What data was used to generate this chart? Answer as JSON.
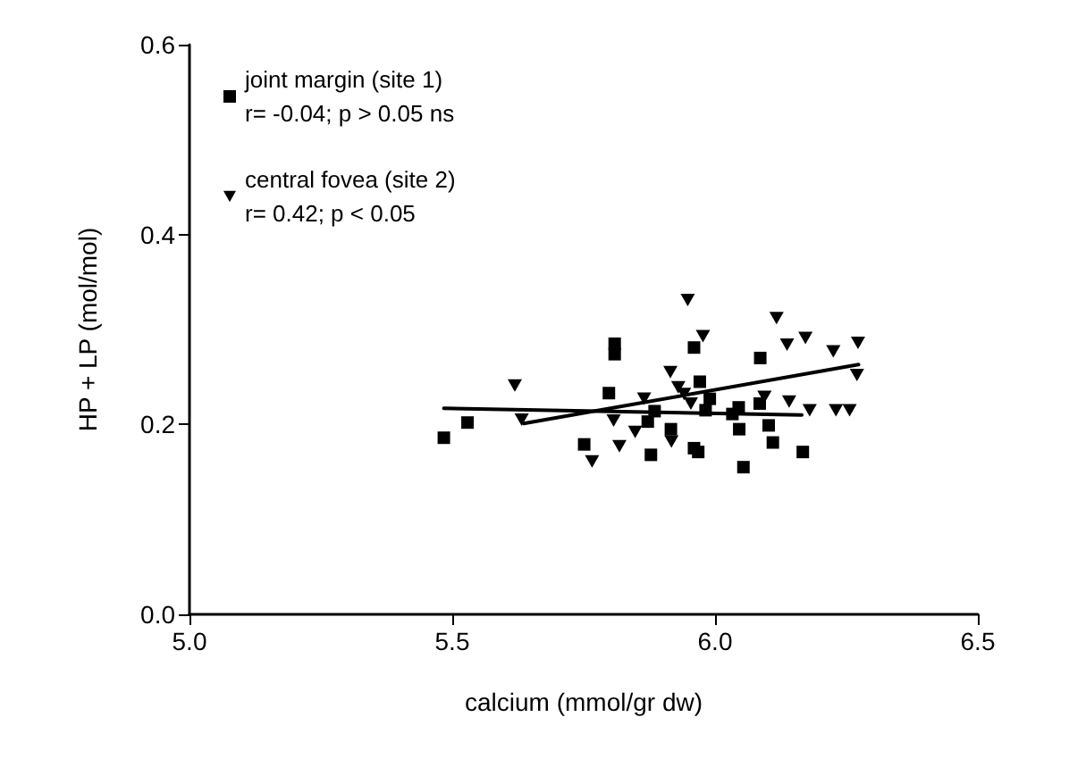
{
  "chart_data": {
    "type": "scatter",
    "xlabel": "calcium (mmol/gr dw)",
    "ylabel": "HP + LP (mol/mol)",
    "xlim": [
      5.0,
      6.5
    ],
    "xticks": [
      {
        "value": 5.0,
        "label": "5.0"
      },
      {
        "value": 5.5,
        "label": "5.5"
      },
      {
        "value": 6.0,
        "label": "6.0"
      },
      {
        "value": 6.5,
        "label": "6.5"
      }
    ],
    "ylim": [
      0,
      0.6
    ],
    "yticks": [
      {
        "value": 0,
        "label": "0.0"
      },
      {
        "value": 0.2,
        "label": "0.2"
      },
      {
        "value": 0.4,
        "label": "0.4"
      },
      {
        "value": 0.6,
        "label": "0.6"
      }
    ],
    "grid": false,
    "legend": "top left",
    "series": [
      {
        "name": "joint margin (site 1)\nr= -0.04; p > 0.05 ns",
        "color": "#000000",
        "marker": "square",
        "x": [
          5.484,
          5.529,
          5.751,
          5.798,
          5.809,
          5.809,
          5.872,
          5.885,
          5.878,
          5.916,
          5.96,
          5.971,
          5.96,
          5.968,
          5.982,
          5.99,
          6.033,
          6.045,
          6.046,
          6.054,
          6.085,
          6.086,
          6.102,
          6.11,
          6.167
        ],
        "values": [
          0.186,
          0.202,
          0.179,
          0.233,
          0.285,
          0.274,
          0.203,
          0.214,
          0.168,
          0.195,
          0.281,
          0.245,
          0.175,
          0.171,
          0.215,
          0.227,
          0.211,
          0.218,
          0.195,
          0.155,
          0.222,
          0.27,
          0.199,
          0.181,
          0.171
        ]
      },
      {
        "name": "central fovea (site 2)\nr= 0.42; p < 0.05",
        "color": "#000000",
        "marker": "triangle",
        "x": [
          5.619,
          5.632,
          5.766,
          5.807,
          5.818,
          5.848,
          5.865,
          5.915,
          5.917,
          5.93,
          5.941,
          5.948,
          5.954,
          5.977,
          6.117,
          6.094,
          6.137,
          6.141,
          6.172,
          6.18,
          6.225,
          6.23,
          6.256,
          6.272,
          6.27
        ],
        "values": [
          0.241,
          0.205,
          0.161,
          0.204,
          0.177,
          0.192,
          0.227,
          0.255,
          0.182,
          0.239,
          0.232,
          0.331,
          0.222,
          0.293,
          0.312,
          0.229,
          0.284,
          0.224,
          0.291,
          0.215,
          0.277,
          0.215,
          0.215,
          0.286,
          0.252
        ]
      },
      {
        "type": "line",
        "color": "#000000",
        "marker": "none",
        "x": [
          5.484,
          6.165
        ],
        "values": [
          0.217,
          0.21
        ]
      },
      {
        "type": "line",
        "color": "#000000",
        "marker": "none",
        "x": [
          5.636,
          6.273
        ],
        "values": [
          0.201,
          0.263
        ]
      }
    ]
  }
}
